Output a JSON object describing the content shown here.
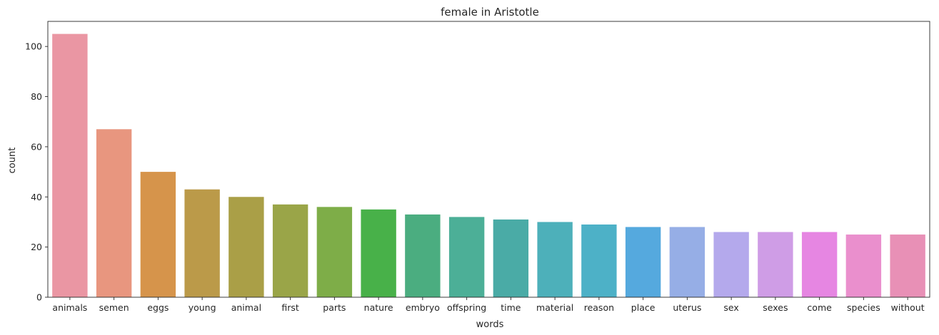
{
  "chart_data": {
    "type": "bar",
    "title": "female in Aristotle",
    "xlabel": "words",
    "ylabel": "count",
    "ylim": [
      0,
      110
    ],
    "yticks": [
      0,
      20,
      40,
      60,
      80,
      100
    ],
    "grid": false,
    "categories": [
      "animals",
      "semen",
      "eggs",
      "young",
      "animal",
      "first",
      "parts",
      "nature",
      "embryo",
      "offspring",
      "time",
      "material",
      "reason",
      "place",
      "uterus",
      "sex",
      "sexes",
      "come",
      "species",
      "without"
    ],
    "values": [
      105,
      67,
      50,
      43,
      40,
      37,
      36,
      35,
      33,
      32,
      31,
      30,
      29,
      28,
      28,
      26,
      26,
      26,
      25,
      25
    ],
    "colors": [
      "#ea96a3",
      "#e8967f",
      "#d6944b",
      "#bb9a49",
      "#aa9f47",
      "#9aa548",
      "#7ead48",
      "#48b149",
      "#4bad80",
      "#4caf97",
      "#4aaba6",
      "#4db0ba",
      "#4db1c7",
      "#55a9de",
      "#96aee6",
      "#b4a9ec",
      "#cf9de6",
      "#e686e2",
      "#ea8fcd",
      "#e890b6"
    ]
  }
}
